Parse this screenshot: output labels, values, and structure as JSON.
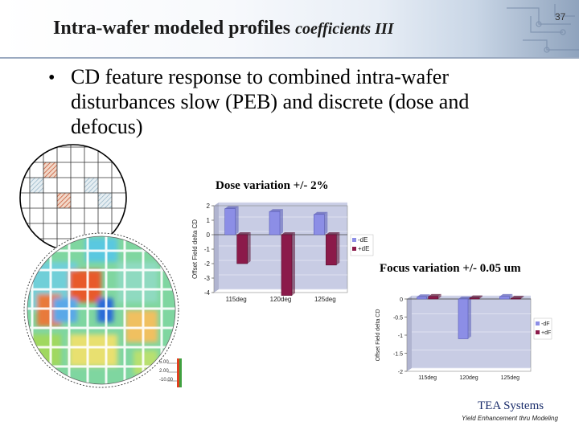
{
  "slide": {
    "title": "Intra-wafer modeled profiles ",
    "title_suffix": "coefficients III",
    "number": "37",
    "bullet": "CD feature response to combined intra-wafer disturbances slow (PEB) and discrete (dose and defocus)",
    "footer_brand": "TEA Systems",
    "footer_tagline": "Yield Enhancement thru Modeling"
  },
  "heatmap_scale": [
    "5.00",
    "2.00",
    "-10.00"
  ],
  "colors": {
    "series_neg": "#8c8ee6",
    "series_pos": "#8b1a4a",
    "plot_bg": "#c8cce4",
    "accent": "#1a2d6b"
  },
  "chart_data": [
    {
      "type": "bar",
      "title": "Dose variation +/- 2%",
      "ylabel": "Offset Field delta CD",
      "categories": [
        "115deg",
        "120deg",
        "125deg"
      ],
      "series": [
        {
          "name": "-dE",
          "values": [
            1.8,
            1.6,
            1.4
          ]
        },
        {
          "name": "+dE",
          "values": [
            -2.0,
            -4.2,
            -2.1
          ]
        }
      ],
      "ylim": [
        -4,
        2
      ],
      "yticks": [
        2,
        1,
        0,
        -1,
        -2,
        -3,
        -4
      ],
      "legend": "right"
    },
    {
      "type": "bar",
      "title": "Focus variation +/- 0.05 um",
      "ylabel": "Offset Field delta CD",
      "categories": [
        "115deg",
        "120deg",
        "125deg"
      ],
      "series": [
        {
          "name": "-dF",
          "values": [
            0.06,
            -1.1,
            0.07
          ]
        },
        {
          "name": "+dF",
          "values": [
            0.07,
            0.03,
            0.02
          ]
        }
      ],
      "ylim": [
        -2,
        0
      ],
      "yticks": [
        0,
        -0.5,
        -1,
        -1.5,
        -2
      ],
      "legend": "right"
    }
  ]
}
